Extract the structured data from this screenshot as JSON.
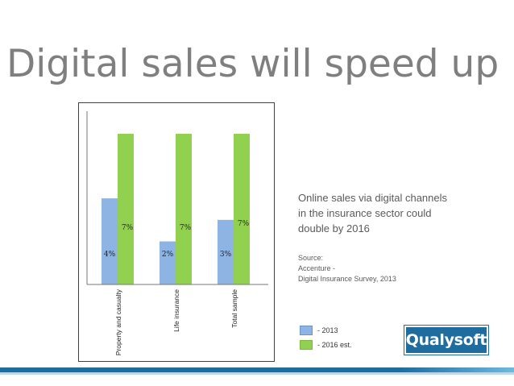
{
  "title": "Digital sales will speed up",
  "description": {
    "lines": [
      "Online sales via digital channels",
      "in the insurance sector could",
      "double by 2016"
    ]
  },
  "source": {
    "lines": [
      "Source:",
      "Accenture -",
      "Digital Insurance Survey, 2013"
    ]
  },
  "logo": {
    "text": "Qualysoft"
  },
  "colors": {
    "series_2013": "#8db4e2",
    "series_2016": "#92d050",
    "title": "#7f7f7f",
    "brand": "#1f6d9e"
  },
  "chart_data": {
    "type": "bar",
    "categories": [
      "Property and casualty",
      "Life insurance",
      "Total sample"
    ],
    "series": [
      {
        "name": "- 2013",
        "values": [
          4,
          2,
          3
        ],
        "labels": [
          "4%",
          "2%",
          "3%"
        ]
      },
      {
        "name": "- 2016 est.",
        "values": [
          7,
          7,
          7
        ],
        "labels": [
          "7%",
          "7%",
          "7%"
        ]
      }
    ],
    "legend": "bottom-right",
    "grid": false
  }
}
